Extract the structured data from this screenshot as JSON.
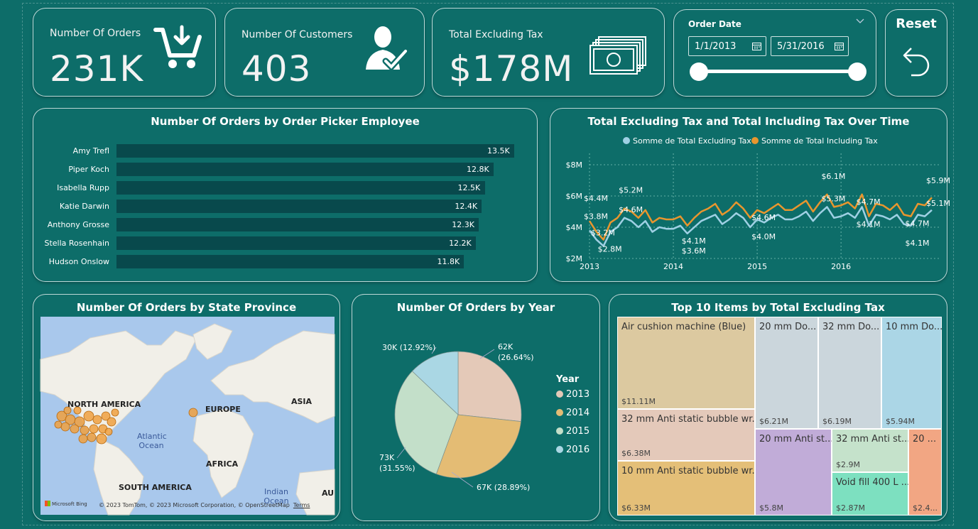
{
  "kpis": [
    {
      "label": "Number Of Orders",
      "value": "231K",
      "icon": "shopping-cart-icon"
    },
    {
      "label": "Number Of Customers",
      "value": "403",
      "icon": "customer-icon"
    },
    {
      "label": "Total Excluding Tax",
      "value": "$178M",
      "icon": "money-icon"
    }
  ],
  "slicer": {
    "title": "Order Date",
    "start": "1/1/2013",
    "end": "5/31/2016",
    "icon": "calendar-icon"
  },
  "reset": {
    "label": "Reset",
    "icon": "undo-icon"
  },
  "chart_data": [
    {
      "type": "bar",
      "title": "Number Of Orders by Order Picker Employee",
      "categories": [
        "Amy Trefl",
        "Piper Koch",
        "Isabella Rupp",
        "Katie Darwin",
        "Anthony Grosse",
        "Stella Rosenhain",
        "Hudson Onslow"
      ],
      "values": [
        13.5,
        12.8,
        12.5,
        12.4,
        12.3,
        12.2,
        11.8
      ],
      "data_labels": [
        "13.5K",
        "12.8K",
        "12.5K",
        "12.4K",
        "12.3K",
        "12.2K",
        "11.8K"
      ],
      "color": "#08494c"
    },
    {
      "type": "line",
      "title": "Total Excluding Tax and Total Including Tax Over Time",
      "x_ticks": [
        "2013",
        "2014",
        "2015",
        "2016"
      ],
      "y_ticks": [
        "$2M",
        "$4M",
        "$6M",
        "$8M"
      ],
      "ylim": [
        2,
        8.5
      ],
      "legend": "top",
      "grid": true,
      "series": [
        {
          "name": "Somme de Total Excluding Tax",
          "color": "#9fd0e4",
          "values": [
            3.8,
            3.2,
            2.8,
            3.7,
            4.0,
            4.6,
            4.4,
            4.0,
            4.4,
            3.7,
            4.0,
            3.9,
            3.9,
            4.1,
            3.6,
            4.0,
            4.4,
            4.6,
            4.8,
            4.2,
            4.5,
            4.9,
            4.6,
            4.0,
            4.5,
            4.3,
            4.6,
            4.8,
            4.5,
            4.5,
            4.7,
            5.0,
            4.4,
            4.9,
            5.3,
            4.6,
            4.7,
            4.9,
            4.6,
            5.3,
            4.1,
            4.8,
            4.7,
            4.5,
            4.8,
            4.2,
            4.1,
            4.8,
            4.7,
            5.1
          ]
        },
        {
          "name": "Somme de Total Including Tax",
          "color": "#e8962e",
          "values": [
            4.4,
            3.7,
            3.2,
            4.3,
            4.6,
            5.2,
            5.0,
            4.6,
            5.1,
            4.3,
            4.6,
            4.5,
            4.5,
            4.7,
            4.1,
            4.6,
            5.0,
            5.2,
            5.5,
            4.8,
            5.1,
            5.6,
            5.2,
            4.6,
            5.1,
            4.9,
            5.2,
            5.5,
            5.1,
            5.1,
            5.4,
            5.7,
            5.0,
            5.6,
            6.1,
            5.3,
            5.4,
            5.6,
            5.2,
            6.1,
            4.7,
            5.5,
            5.4,
            5.1,
            5.5,
            4.8,
            4.7,
            5.5,
            5.4,
            5.9
          ]
        }
      ],
      "annotations": [
        "$4.4M",
        "$3.8M",
        "$3.2M",
        "$2.8M",
        "$5.2M",
        "$4.6M",
        "$4.1M",
        "$3.6M",
        "$4.6M",
        "$4.0M",
        "$6.1M",
        "$5.3M",
        "$4.7M",
        "$4.1M",
        "$4.7M",
        "$4.1M",
        "$5.9M",
        "$5.1M"
      ]
    },
    {
      "type": "map",
      "title": "Number Of Orders by State Province",
      "labels": [
        "NORTH AMERICA",
        "EUROPE",
        "ASIA",
        "AFRICA",
        "SOUTH AMERICA",
        "Atlantic Ocean",
        "Indian Ocean",
        "AU"
      ],
      "attribution": "© 2023 TomTom, © 2023 Microsoft Corporation, © OpenStreetMap",
      "terms": "Terms",
      "brand": "Microsoft Bing"
    },
    {
      "type": "pie",
      "title": "Number Of Orders by Year",
      "legend_title": "Year",
      "legend": "right",
      "categories": [
        "2013",
        "2014",
        "2015",
        "2016"
      ],
      "values": [
        62,
        67,
        73,
        30
      ],
      "percents": [
        26.64,
        28.89,
        31.55,
        12.92
      ],
      "colors": [
        "#e4c9b8",
        "#e4bc74",
        "#c3dfc9",
        "#aad7e4"
      ],
      "data_labels": [
        [
          "62K",
          "(26.64%)"
        ],
        [
          "67K (28.89%)"
        ],
        [
          "73K",
          "(31.55%)"
        ],
        [
          "30K (12.92%)"
        ]
      ]
    },
    {
      "type": "treemap",
      "title": "Top 10 Items by Total Excluding Tax",
      "items": [
        {
          "name": "Air cushion machine (Blue)",
          "value": "$11.11M",
          "color": "#dcc9a0"
        },
        {
          "name": "32 mm Anti static bubble wr...",
          "value": "$6.38M",
          "color": "#e4c9ba"
        },
        {
          "name": "10 mm Anti static bubble wr...",
          "value": "$6.33M",
          "color": "#e4bf78"
        },
        {
          "name": "20 mm Do...",
          "value": "$6.21M",
          "color": "#cbd6dc"
        },
        {
          "name": "32 mm Do...",
          "value": "$6.19M",
          "color": "#cbd6dc"
        },
        {
          "name": "10 mm Do...",
          "value": "$5.94M",
          "color": "#abd6e6"
        },
        {
          "name": "20 mm Anti st...",
          "value": "$5.8M",
          "color": "#c1acd8"
        },
        {
          "name": "32 mm Anti st...",
          "value": "$2.9M",
          "color": "#c5e2cb"
        },
        {
          "name": "Void fill 400 L ...",
          "value": "$2.87M",
          "color": "#7de0c0"
        },
        {
          "name": "20 ...",
          "value": "$2.4...",
          "color": "#f2a683"
        }
      ]
    }
  ]
}
